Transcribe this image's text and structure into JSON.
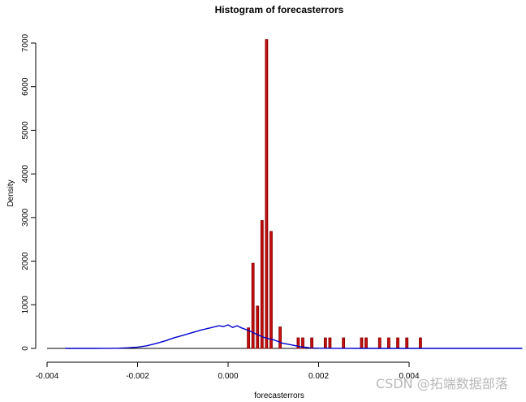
{
  "chart_data": {
    "type": "bar",
    "title": "Histogram of forecasterrors",
    "xlabel": "forecasterrors",
    "ylabel": "Density",
    "xlim": [
      -0.004,
      0.0065
    ],
    "ylim": [
      0,
      7000
    ],
    "x_ticks": [
      {
        "value": -0.004,
        "label": "-0.004"
      },
      {
        "value": -0.002,
        "label": "-0.002"
      },
      {
        "value": 0.0,
        "label": "0.000"
      },
      {
        "value": 0.002,
        "label": "0.002"
      },
      {
        "value": 0.004,
        "label": "0.004"
      }
    ],
    "y_ticks": [
      0,
      1000,
      2000,
      3000,
      4000,
      5000,
      6000,
      7000
    ],
    "bar_width": 5e-05,
    "bars": [
      {
        "x": 0.00045,
        "y": 470
      },
      {
        "x": 0.00055,
        "y": 1950
      },
      {
        "x": 0.00065,
        "y": 970
      },
      {
        "x": 0.00075,
        "y": 2930
      },
      {
        "x": 0.00085,
        "y": 7080
      },
      {
        "x": 0.00095,
        "y": 2680
      },
      {
        "x": 0.00115,
        "y": 490
      },
      {
        "x": 0.00155,
        "y": 240
      },
      {
        "x": 0.00165,
        "y": 240
      },
      {
        "x": 0.00185,
        "y": 240
      },
      {
        "x": 0.00215,
        "y": 240
      },
      {
        "x": 0.00225,
        "y": 240
      },
      {
        "x": 0.00255,
        "y": 240
      },
      {
        "x": 0.00295,
        "y": 240
      },
      {
        "x": 0.00305,
        "y": 240
      },
      {
        "x": 0.00335,
        "y": 240
      },
      {
        "x": 0.00355,
        "y": 240
      },
      {
        "x": 0.00375,
        "y": 240
      },
      {
        "x": 0.00395,
        "y": 240
      },
      {
        "x": 0.00425,
        "y": 240
      }
    ],
    "density_line": {
      "color": "#0000cc",
      "points": [
        [
          -0.0036,
          0
        ],
        [
          -0.003,
          0
        ],
        [
          -0.0026,
          2
        ],
        [
          -0.0024,
          6
        ],
        [
          -0.0022,
          15
        ],
        [
          -0.002,
          30
        ],
        [
          -0.0018,
          60
        ],
        [
          -0.0016,
          110
        ],
        [
          -0.0014,
          170
        ],
        [
          -0.0012,
          240
        ],
        [
          -0.001,
          300
        ],
        [
          -0.0008,
          360
        ],
        [
          -0.0006,
          420
        ],
        [
          -0.0004,
          470
        ],
        [
          -0.0002,
          520
        ],
        [
          -0.0001,
          500
        ],
        [
          0.0,
          540
        ],
        [
          0.0001,
          480
        ],
        [
          0.0002,
          520
        ],
        [
          0.0003,
          470
        ],
        [
          0.0004,
          430
        ],
        [
          0.0005,
          390
        ],
        [
          0.0006,
          340
        ],
        [
          0.0007,
          290
        ],
        [
          0.0008,
          250
        ],
        [
          0.0009,
          220
        ],
        [
          0.001,
          200
        ],
        [
          0.0011,
          160
        ],
        [
          0.0012,
          120
        ],
        [
          0.0014,
          80
        ],
        [
          0.0016,
          40
        ],
        [
          0.0018,
          15
        ],
        [
          0.002,
          5
        ],
        [
          0.0024,
          1
        ],
        [
          0.003,
          0
        ],
        [
          0.0065,
          0
        ]
      ]
    },
    "bar_color": "#8b0000",
    "bar_fill": "#cc1111",
    "grid": false
  },
  "watermark": {
    "text": "CSDN @拓端数据部落"
  }
}
